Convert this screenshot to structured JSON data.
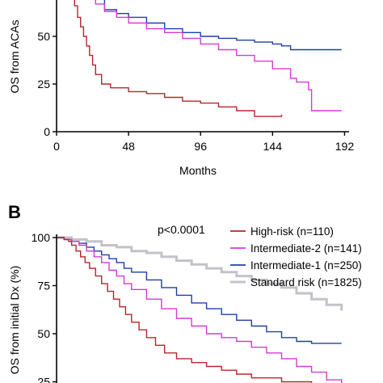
{
  "chart_data": [
    {
      "panel": "",
      "type": "line",
      "step": true,
      "xlabel": "Months",
      "ylabel": "OS from ACAs",
      "xlim": [
        0,
        195
      ],
      "ylim": [
        0,
        100
      ],
      "xticks": [
        "0",
        "48",
        "96",
        "144",
        "192"
      ],
      "xtick_values": [
        0,
        48,
        96,
        144,
        192
      ],
      "yticks": [
        "0",
        "25",
        "50"
      ],
      "ytick_values": [
        0,
        25,
        50
      ],
      "series": [
        {
          "color": "#1f3fa6",
          "x": [
            0,
            5,
            8,
            10,
            12,
            14,
            16,
            18,
            20,
            22,
            26,
            32,
            40,
            48,
            60,
            72,
            84,
            96,
            108,
            120,
            132,
            144,
            150,
            156,
            180,
            190
          ],
          "y": [
            100,
            97,
            94,
            91,
            88,
            84,
            80,
            78,
            76,
            73,
            70,
            64,
            62,
            60,
            57,
            54,
            52,
            50,
            49,
            48,
            47,
            46,
            45,
            43,
            43,
            43
          ]
        },
        {
          "color": "#d63ad6",
          "x": [
            0,
            5,
            8,
            10,
            12,
            14,
            16,
            18,
            20,
            22,
            26,
            32,
            40,
            48,
            60,
            72,
            84,
            96,
            108,
            120,
            132,
            144,
            156,
            160,
            168,
            170,
            180,
            190
          ],
          "y": [
            100,
            96,
            92,
            88,
            84,
            80,
            77,
            74,
            72,
            70,
            67,
            63,
            60,
            57,
            54,
            52,
            49,
            46,
            43,
            40,
            37,
            33,
            28,
            26,
            22,
            11,
            11,
            11
          ]
        },
        {
          "color": "#b8262c",
          "x": [
            0,
            5,
            7,
            9,
            11,
            12,
            14,
            16,
            18,
            20,
            22,
            24,
            26,
            30,
            36,
            48,
            60,
            72,
            84,
            96,
            108,
            120,
            132,
            144,
            150
          ],
          "y": [
            100,
            92,
            85,
            78,
            72,
            66,
            60,
            55,
            50,
            45,
            40,
            35,
            30,
            25,
            23,
            21,
            20,
            18,
            16,
            15,
            13,
            11,
            8,
            8,
            9
          ]
        }
      ]
    },
    {
      "panel": "B",
      "type": "line",
      "step": true,
      "xlabel": "",
      "ylabel": "OS from initial Dx (%)",
      "xlim": [
        0,
        195
      ],
      "ylim": [
        25,
        100
      ],
      "yticks": [
        "100",
        "75",
        "50",
        "25"
      ],
      "ytick_values": [
        100,
        75,
        50,
        25
      ],
      "annotation": "p<0.0001",
      "legend_position": "top-right",
      "series": [
        {
          "name": "High-risk (n=110)",
          "color": "#b8262c",
          "x": [
            0,
            5,
            8,
            10,
            13,
            16,
            19,
            22,
            26,
            30,
            34,
            38,
            42,
            46,
            50,
            55,
            60,
            66,
            72,
            80,
            90,
            100,
            110,
            120,
            130,
            150,
            170,
            190
          ],
          "y": [
            100,
            99,
            98,
            96,
            93,
            90,
            87,
            84,
            80,
            76,
            72,
            68,
            64,
            60,
            56,
            52,
            48,
            44,
            40,
            37,
            35,
            33,
            31,
            29,
            27,
            25,
            22,
            20
          ]
        },
        {
          "name": "Intermediate-2 (n=141)",
          "color": "#d63ad6",
          "x": [
            0,
            5,
            10,
            15,
            20,
            25,
            30,
            35,
            40,
            45,
            50,
            60,
            70,
            80,
            90,
            100,
            110,
            120,
            130,
            140,
            150,
            160,
            170,
            180,
            190
          ],
          "y": [
            100,
            99,
            98,
            96,
            93,
            90,
            87,
            83,
            80,
            76,
            73,
            68,
            63,
            58,
            54,
            50,
            48,
            46,
            43,
            40,
            37,
            33,
            30,
            26,
            24
          ]
        },
        {
          "name": "Intermediate-1 (n=250)",
          "color": "#1f3fa6",
          "x": [
            0,
            5,
            10,
            15,
            20,
            25,
            30,
            35,
            40,
            45,
            50,
            60,
            70,
            80,
            90,
            100,
            110,
            120,
            130,
            140,
            150,
            160,
            170,
            180,
            190
          ],
          "y": [
            100,
            99,
            98,
            97,
            95,
            93,
            91,
            89,
            87,
            84,
            82,
            78,
            74,
            70,
            66,
            63,
            60,
            57,
            54,
            51,
            48,
            46,
            45,
            45,
            45
          ]
        },
        {
          "name": "Standard risk (n=1825)",
          "color": "#c2c2c9",
          "x": [
            0,
            10,
            20,
            30,
            40,
            50,
            60,
            70,
            80,
            90,
            100,
            110,
            120,
            130,
            140,
            150,
            160,
            170,
            180,
            190
          ],
          "y": [
            100,
            99,
            98,
            96,
            95,
            93,
            92,
            90,
            88,
            86,
            84,
            82,
            80,
            78,
            76,
            74,
            71,
            68,
            65,
            62
          ]
        }
      ]
    }
  ]
}
